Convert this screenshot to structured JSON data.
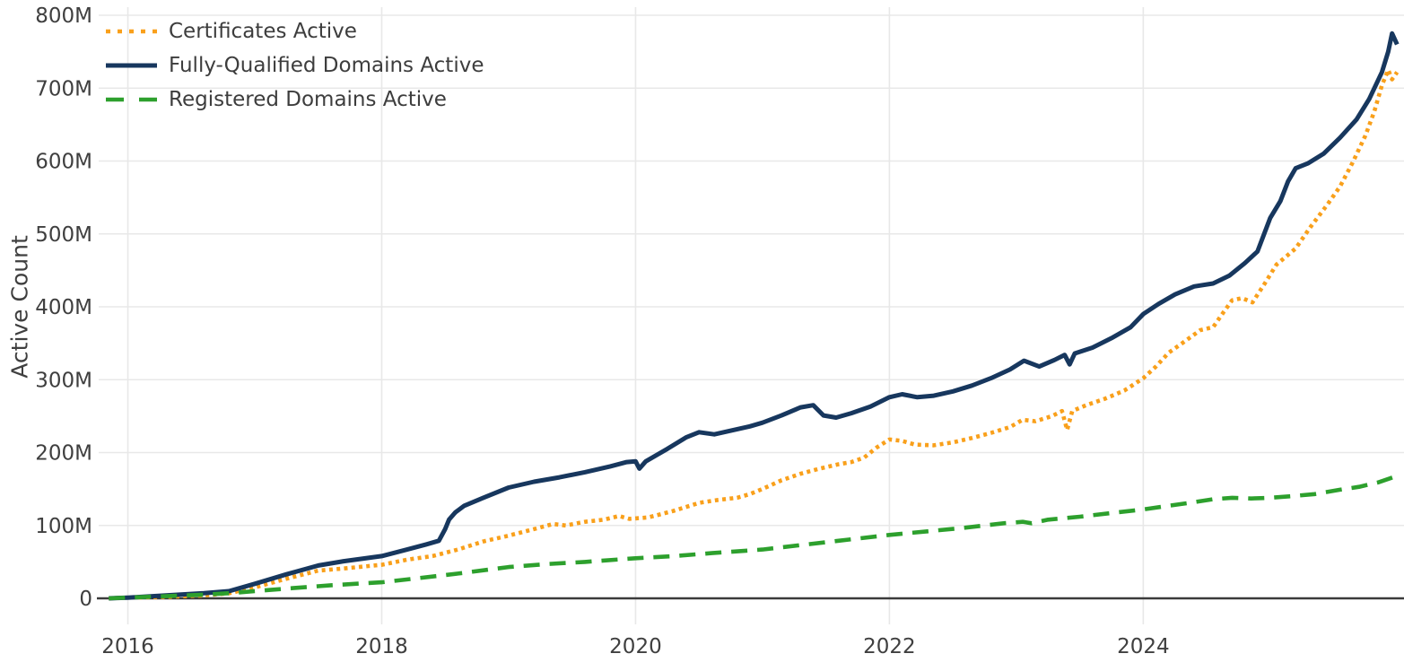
{
  "chart_data": {
    "type": "line",
    "title": "",
    "xlabel": "",
    "ylabel": "Active Count",
    "y_unit": "millions",
    "grid": true,
    "legend_position": "top-left",
    "x_range": [
      2015.77,
      2026.04
    ],
    "y_range": [
      0,
      800
    ],
    "x_ticks": [
      {
        "year": 2016,
        "label": "2016"
      },
      {
        "year": 2018,
        "label": "2018"
      },
      {
        "year": 2020,
        "label": "2020"
      },
      {
        "year": 2022,
        "label": "2022"
      },
      {
        "year": 2024,
        "label": "2024"
      }
    ],
    "y_ticks": [
      {
        "value": 0,
        "label": "0"
      },
      {
        "value": 100,
        "label": "100M"
      },
      {
        "value": 200,
        "label": "200M"
      },
      {
        "value": 300,
        "label": "300M"
      },
      {
        "value": 400,
        "label": "400M"
      },
      {
        "value": 500,
        "label": "500M"
      },
      {
        "value": 600,
        "label": "600M"
      },
      {
        "value": 700,
        "label": "700M"
      },
      {
        "value": 800,
        "label": "800M"
      }
    ],
    "series": [
      {
        "name": "Certificates Active",
        "color": "#f9a01b",
        "dash": "dotted",
        "points": [
          [
            2015.85,
            0
          ],
          [
            2016.0,
            1
          ],
          [
            2016.3,
            2
          ],
          [
            2016.6,
            4
          ],
          [
            2016.8,
            7
          ],
          [
            2017.0,
            15
          ],
          [
            2017.25,
            27
          ],
          [
            2017.5,
            38
          ],
          [
            2017.7,
            41
          ],
          [
            2018.0,
            46
          ],
          [
            2018.2,
            53
          ],
          [
            2018.4,
            58
          ],
          [
            2018.6,
            67
          ],
          [
            2018.8,
            78
          ],
          [
            2019.0,
            86
          ],
          [
            2019.2,
            95
          ],
          [
            2019.35,
            102
          ],
          [
            2019.45,
            100
          ],
          [
            2019.6,
            105
          ],
          [
            2019.75,
            108
          ],
          [
            2019.87,
            113
          ],
          [
            2019.95,
            109
          ],
          [
            2020.1,
            111
          ],
          [
            2020.3,
            120
          ],
          [
            2020.5,
            131
          ],
          [
            2020.65,
            135
          ],
          [
            2020.8,
            138
          ],
          [
            2020.9,
            143
          ],
          [
            2021.0,
            150
          ],
          [
            2021.15,
            162
          ],
          [
            2021.3,
            171
          ],
          [
            2021.45,
            178
          ],
          [
            2021.6,
            184
          ],
          [
            2021.7,
            187
          ],
          [
            2021.8,
            193
          ],
          [
            2021.9,
            207
          ],
          [
            2022.0,
            218
          ],
          [
            2022.1,
            216
          ],
          [
            2022.2,
            211
          ],
          [
            2022.35,
            210
          ],
          [
            2022.5,
            214
          ],
          [
            2022.65,
            220
          ],
          [
            2022.8,
            227
          ],
          [
            2022.95,
            235
          ],
          [
            2023.05,
            245
          ],
          [
            2023.15,
            243
          ],
          [
            2023.28,
            250
          ],
          [
            2023.36,
            257
          ],
          [
            2023.4,
            231
          ],
          [
            2023.44,
            257
          ],
          [
            2023.55,
            265
          ],
          [
            2023.7,
            274
          ],
          [
            2023.85,
            285
          ],
          [
            2024.0,
            302
          ],
          [
            2024.1,
            318
          ],
          [
            2024.2,
            337
          ],
          [
            2024.33,
            353
          ],
          [
            2024.45,
            368
          ],
          [
            2024.55,
            372
          ],
          [
            2024.63,
            392
          ],
          [
            2024.7,
            409
          ],
          [
            2024.78,
            412
          ],
          [
            2024.86,
            406
          ],
          [
            2024.95,
            430
          ],
          [
            2025.05,
            458
          ],
          [
            2025.2,
            480
          ],
          [
            2025.32,
            510
          ],
          [
            2025.45,
            540
          ],
          [
            2025.55,
            565
          ],
          [
            2025.65,
            598
          ],
          [
            2025.75,
            635
          ],
          [
            2025.82,
            668
          ],
          [
            2025.88,
            704
          ],
          [
            2025.93,
            725
          ],
          [
            2025.96,
            712
          ],
          [
            2026.0,
            722
          ]
        ]
      },
      {
        "name": "Fully-Qualified Domains Active",
        "color": "#17375e",
        "dash": "solid",
        "points": [
          [
            2015.85,
            0
          ],
          [
            2016.0,
            1
          ],
          [
            2016.3,
            4
          ],
          [
            2016.6,
            7
          ],
          [
            2016.8,
            10
          ],
          [
            2017.0,
            20
          ],
          [
            2017.25,
            33
          ],
          [
            2017.5,
            45
          ],
          [
            2017.7,
            51
          ],
          [
            2018.0,
            58
          ],
          [
            2018.2,
            67
          ],
          [
            2018.35,
            74
          ],
          [
            2018.45,
            79
          ],
          [
            2018.5,
            95
          ],
          [
            2018.53,
            108
          ],
          [
            2018.58,
            118
          ],
          [
            2018.65,
            127
          ],
          [
            2018.8,
            138
          ],
          [
            2019.0,
            152
          ],
          [
            2019.2,
            160
          ],
          [
            2019.4,
            166
          ],
          [
            2019.6,
            173
          ],
          [
            2019.8,
            181
          ],
          [
            2019.93,
            187
          ],
          [
            2020.0,
            188
          ],
          [
            2020.03,
            178
          ],
          [
            2020.08,
            188
          ],
          [
            2020.25,
            205
          ],
          [
            2020.4,
            221
          ],
          [
            2020.5,
            228
          ],
          [
            2020.62,
            225
          ],
          [
            2020.75,
            230
          ],
          [
            2020.9,
            236
          ],
          [
            2021.0,
            241
          ],
          [
            2021.15,
            251
          ],
          [
            2021.3,
            262
          ],
          [
            2021.4,
            265
          ],
          [
            2021.48,
            251
          ],
          [
            2021.58,
            248
          ],
          [
            2021.7,
            254
          ],
          [
            2021.85,
            263
          ],
          [
            2022.0,
            276
          ],
          [
            2022.1,
            280
          ],
          [
            2022.22,
            276
          ],
          [
            2022.35,
            278
          ],
          [
            2022.5,
            284
          ],
          [
            2022.65,
            292
          ],
          [
            2022.8,
            302
          ],
          [
            2022.95,
            314
          ],
          [
            2023.06,
            326
          ],
          [
            2023.18,
            318
          ],
          [
            2023.3,
            327
          ],
          [
            2023.38,
            334
          ],
          [
            2023.42,
            321
          ],
          [
            2023.46,
            336
          ],
          [
            2023.6,
            344
          ],
          [
            2023.75,
            357
          ],
          [
            2023.9,
            372
          ],
          [
            2024.0,
            390
          ],
          [
            2024.12,
            404
          ],
          [
            2024.25,
            417
          ],
          [
            2024.4,
            428
          ],
          [
            2024.55,
            432
          ],
          [
            2024.68,
            443
          ],
          [
            2024.8,
            460
          ],
          [
            2024.9,
            476
          ],
          [
            2025.0,
            522
          ],
          [
            2025.08,
            545
          ],
          [
            2025.14,
            572
          ],
          [
            2025.2,
            590
          ],
          [
            2025.3,
            597
          ],
          [
            2025.42,
            610
          ],
          [
            2025.55,
            632
          ],
          [
            2025.68,
            657
          ],
          [
            2025.78,
            685
          ],
          [
            2025.88,
            722
          ],
          [
            2025.93,
            750
          ],
          [
            2025.96,
            775
          ],
          [
            2026.0,
            760
          ]
        ]
      },
      {
        "name": "Registered Domains Active",
        "color": "#2da02d",
        "dash": "dashed",
        "points": [
          [
            2015.85,
            0
          ],
          [
            2016.0,
            1
          ],
          [
            2016.3,
            3
          ],
          [
            2016.6,
            5
          ],
          [
            2016.8,
            7
          ],
          [
            2017.0,
            10
          ],
          [
            2017.3,
            14
          ],
          [
            2017.6,
            18
          ],
          [
            2018.0,
            22
          ],
          [
            2018.3,
            28
          ],
          [
            2018.6,
            34
          ],
          [
            2019.0,
            43
          ],
          [
            2019.3,
            47
          ],
          [
            2019.6,
            50
          ],
          [
            2020.0,
            55
          ],
          [
            2020.3,
            58
          ],
          [
            2020.6,
            62
          ],
          [
            2021.0,
            67
          ],
          [
            2021.3,
            73
          ],
          [
            2021.6,
            79
          ],
          [
            2022.0,
            87
          ],
          [
            2022.3,
            92
          ],
          [
            2022.6,
            97
          ],
          [
            2022.9,
            103
          ],
          [
            2023.05,
            105
          ],
          [
            2023.12,
            103
          ],
          [
            2023.25,
            108
          ],
          [
            2023.5,
            112
          ],
          [
            2023.75,
            117
          ],
          [
            2024.0,
            122
          ],
          [
            2024.2,
            127
          ],
          [
            2024.36,
            131
          ],
          [
            2024.55,
            136
          ],
          [
            2024.7,
            138
          ],
          [
            2024.85,
            137
          ],
          [
            2025.0,
            138
          ],
          [
            2025.15,
            140
          ],
          [
            2025.35,
            143
          ],
          [
            2025.55,
            149
          ],
          [
            2025.7,
            153
          ],
          [
            2025.85,
            159
          ],
          [
            2025.95,
            165
          ],
          [
            2026.0,
            168
          ]
        ]
      }
    ]
  },
  "colors": {
    "grid": "#e8e8e8",
    "axis": "#3b3b3b",
    "tick_text": "#3f3f3f",
    "legend_text": "#3d3d3d",
    "background": "#ffffff"
  }
}
